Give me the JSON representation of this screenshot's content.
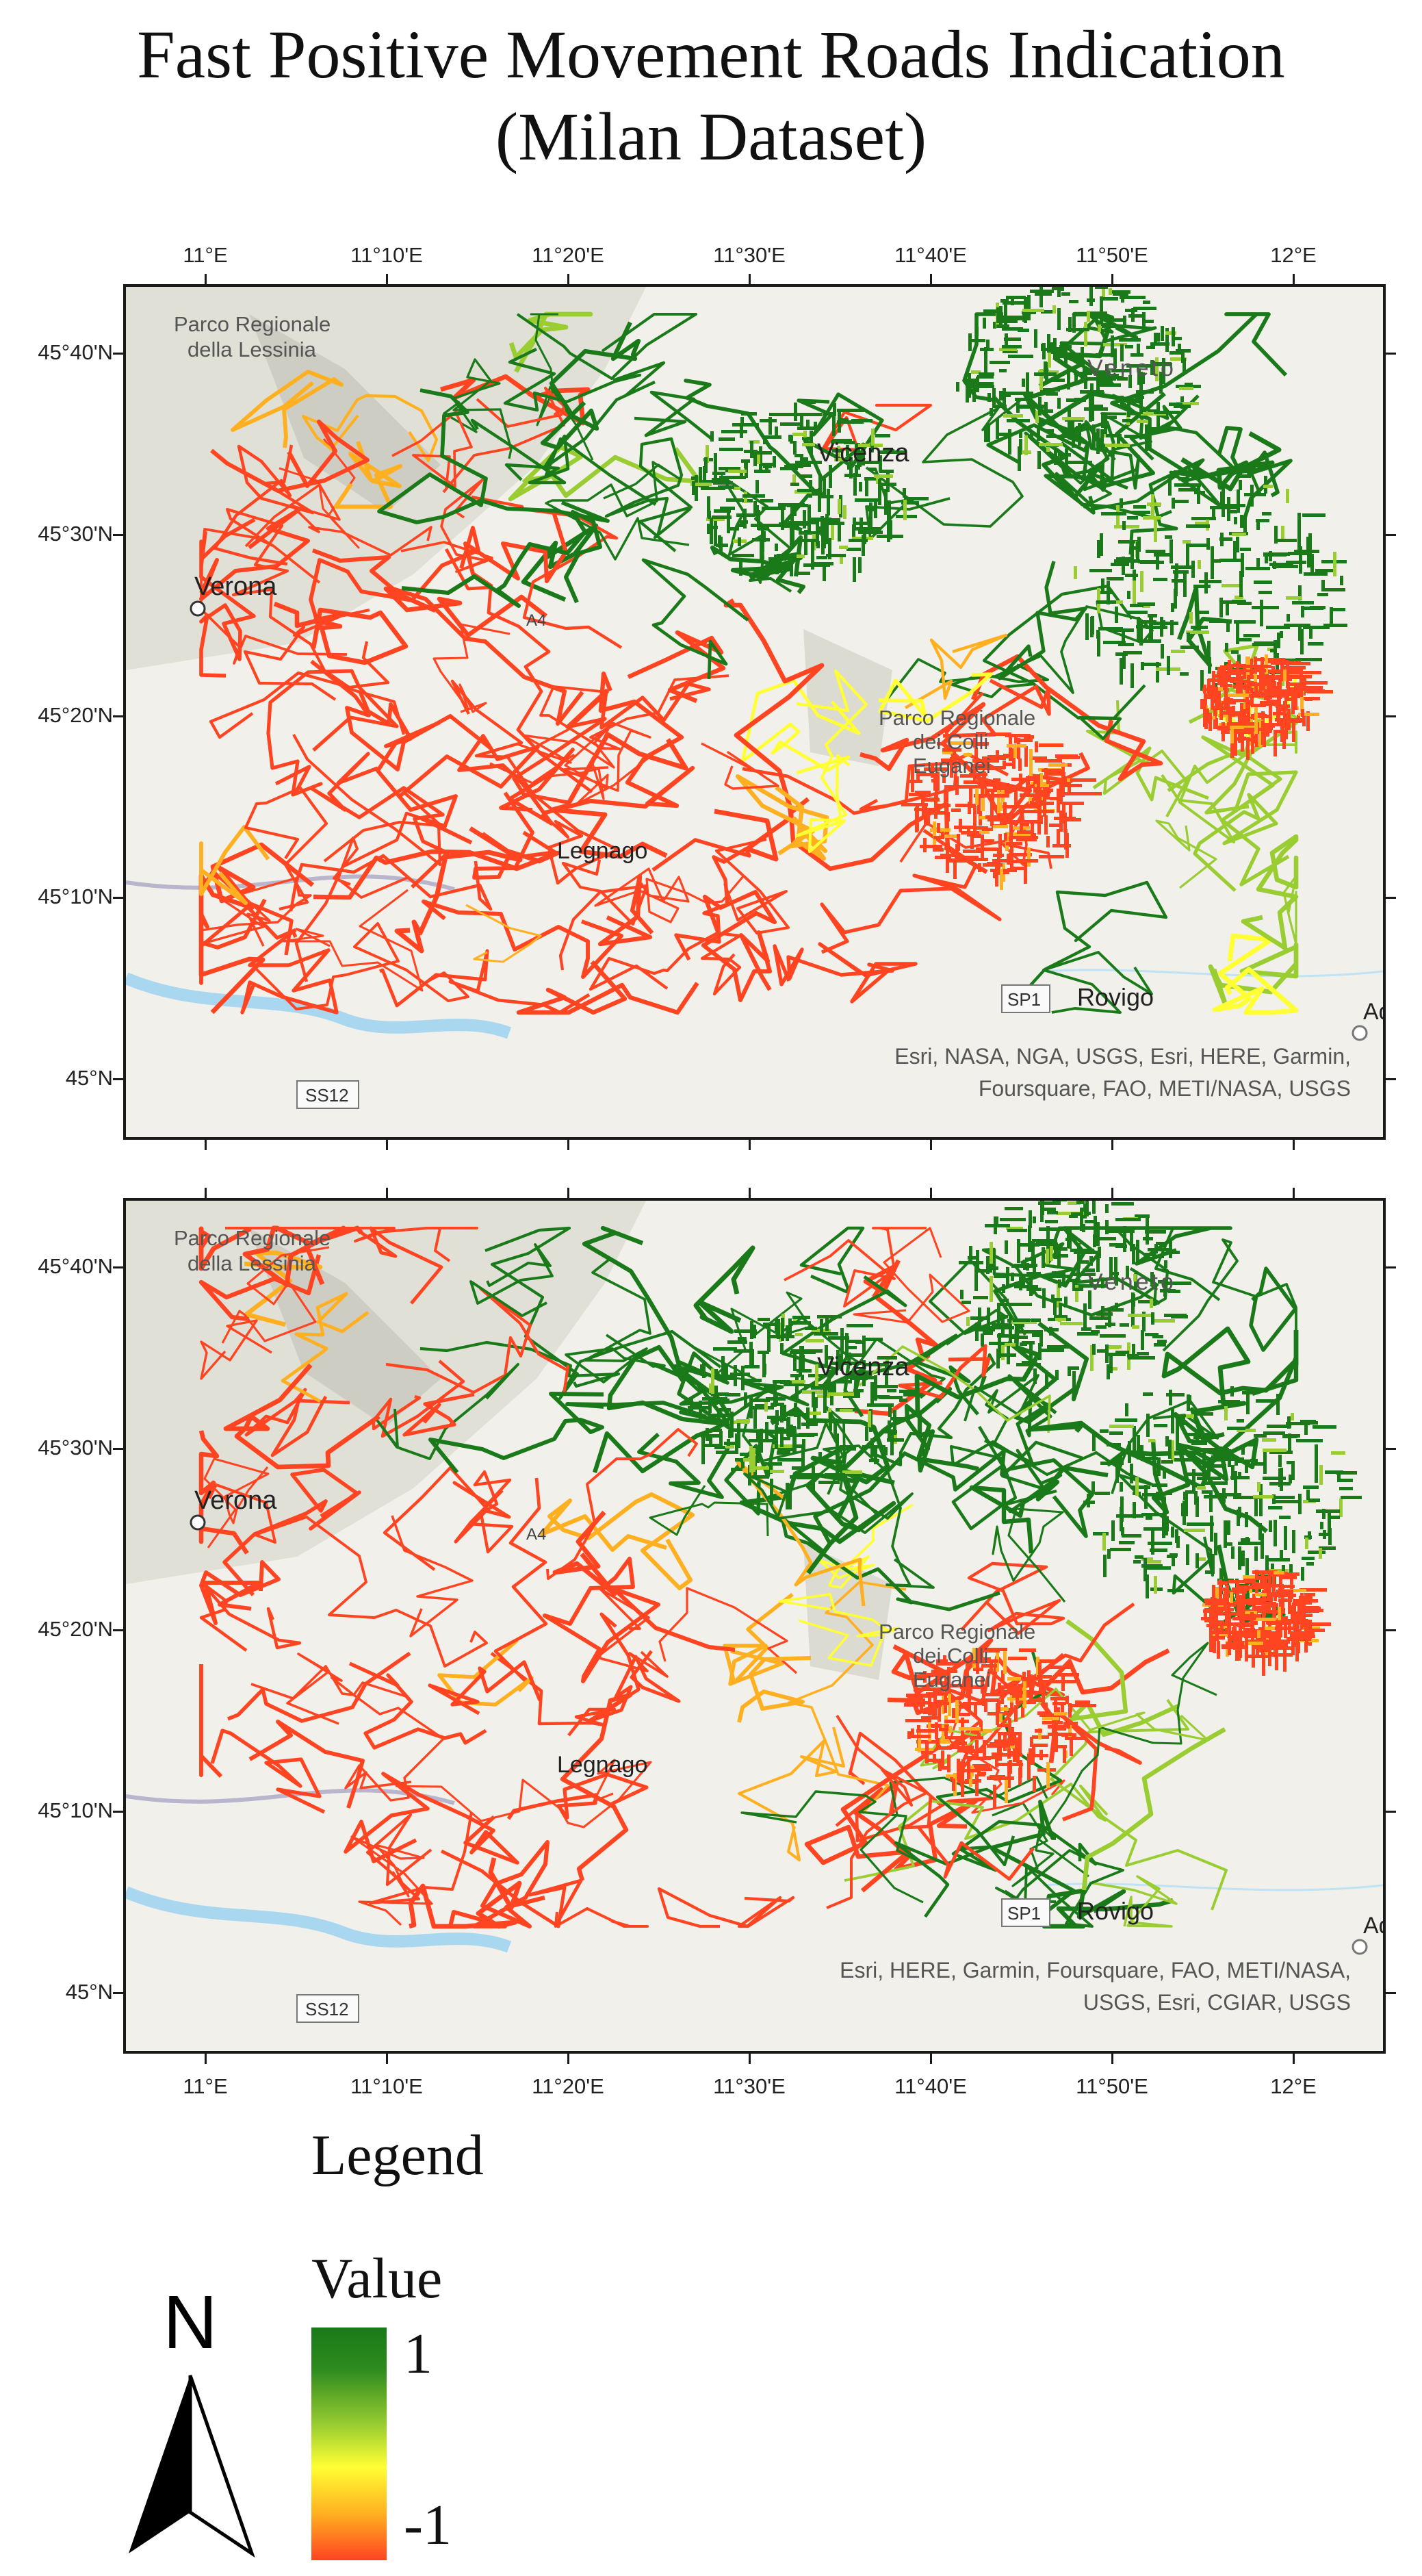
{
  "title": {
    "line1": "Fast Positive Movement Roads Indication",
    "line2": "(Milan Dataset)"
  },
  "axes": {
    "longitude_ticks": [
      "11°E",
      "11°10'E",
      "11°20'E",
      "11°30'E",
      "11°40'E",
      "11°50'E",
      "12°E"
    ],
    "latitude_ticks": [
      "45°40'N",
      "45°30'N",
      "45°20'N",
      "45°10'N",
      "45°N"
    ]
  },
  "maps": [
    {
      "places": [
        "Parco Regionale",
        "della Lessinia",
        "Vicenza",
        "Veneto",
        "Verona",
        "Legnago",
        "Rovigo",
        "Parco Regionale",
        "dei Colli",
        "Euganei",
        "SS12",
        "SP1",
        "A4",
        "Ad"
      ],
      "attribution_line1": "Esri, NASA, NGA, USGS, Esri, HERE, Garmin,",
      "attribution_line2": "Foursquare, FAO, METI/NASA, USGS"
    },
    {
      "places": [
        "Parco Regionale",
        "della Lessinia",
        "Vicenza",
        "Veneto",
        "Verona",
        "Legnago",
        "Rovigo",
        "Parco Regionale",
        "dei Colli",
        "Euganei",
        "SS12",
        "SP1",
        "A4",
        "Ad"
      ],
      "attribution_line1": "Esri, HERE, Garmin, Foursquare, FAO, METI/NASA,",
      "attribution_line2": "USGS, Esri, CGIAR, USGS"
    }
  ],
  "legend": {
    "heading": "Legend",
    "field": "Value",
    "max_label": "1",
    "min_label": "-1",
    "ramp_colors": [
      "#1a7a1a",
      "#9acd32",
      "#ffff33",
      "#ffb020",
      "#ff4422"
    ]
  },
  "north_arrow": {
    "letter": "N",
    "icon": "north-arrow-icon"
  }
}
